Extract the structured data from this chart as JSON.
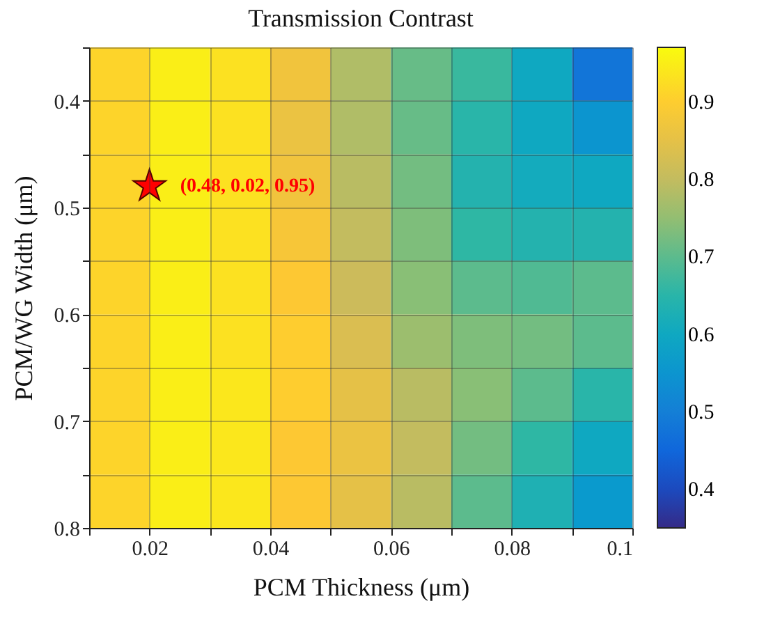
{
  "chart_data": {
    "type": "heatmap",
    "title": "Transmission Contrast",
    "xlabel": "PCM Thickness (μm)",
    "ylabel": "PCM/WG Width (μm)",
    "x": [
      0.015,
      0.025,
      0.035,
      0.045,
      0.055,
      0.065,
      0.075,
      0.085,
      0.095
    ],
    "y": [
      0.375,
      0.425,
      0.475,
      0.525,
      0.575,
      0.625,
      0.675,
      0.725,
      0.775
    ],
    "cells": [
      [
        0.91,
        0.95,
        0.93,
        0.87,
        0.78,
        0.71,
        0.67,
        0.6,
        0.48
      ],
      [
        0.91,
        0.95,
        0.93,
        0.86,
        0.78,
        0.71,
        0.65,
        0.6,
        0.55
      ],
      [
        0.91,
        0.95,
        0.93,
        0.87,
        0.79,
        0.72,
        0.64,
        0.61,
        0.6
      ],
      [
        0.91,
        0.95,
        0.93,
        0.88,
        0.8,
        0.73,
        0.66,
        0.64,
        0.64
      ],
      [
        0.91,
        0.95,
        0.93,
        0.89,
        0.81,
        0.74,
        0.7,
        0.69,
        0.7
      ],
      [
        0.91,
        0.95,
        0.93,
        0.9,
        0.83,
        0.76,
        0.73,
        0.72,
        0.7
      ],
      [
        0.91,
        0.95,
        0.94,
        0.9,
        0.85,
        0.79,
        0.74,
        0.7,
        0.65
      ],
      [
        0.91,
        0.95,
        0.94,
        0.89,
        0.86,
        0.8,
        0.72,
        0.66,
        0.6
      ],
      [
        0.91,
        0.95,
        0.94,
        0.89,
        0.85,
        0.79,
        0.7,
        0.63,
        0.56
      ]
    ],
    "clim": [
      0.35,
      0.97
    ],
    "cticks": [
      0.4,
      0.5,
      0.6,
      0.7,
      0.8,
      0.9
    ],
    "xlim": [
      0.01,
      0.1
    ],
    "ylim": [
      0.8,
      0.35
    ],
    "xticks": [
      {
        "value": 0.01,
        "label": null
      },
      0.02,
      {
        "value": 0.03,
        "label": null
      },
      0.04,
      {
        "value": 0.05,
        "label": null
      },
      0.06,
      {
        "value": 0.07,
        "label": null
      },
      0.08,
      {
        "value": 0.09,
        "label": null
      },
      0.1
    ],
    "yticks": [
      {
        "value": 0.35,
        "label": null
      },
      0.4,
      {
        "value": 0.45,
        "label": null
      },
      0.5,
      {
        "value": 0.55,
        "label": null
      },
      0.6,
      {
        "value": 0.65,
        "label": null
      },
      0.7,
      {
        "value": 0.75,
        "label": null
      },
      0.8
    ],
    "grid": true,
    "series": [
      {
        "type": "scatter",
        "marker": "star",
        "color": "#ff0000",
        "x": [
          0.02
        ],
        "values": [
          0.48
        ]
      }
    ],
    "annotations": [
      "(0.48, 0.02, 0.95)"
    ]
  }
}
